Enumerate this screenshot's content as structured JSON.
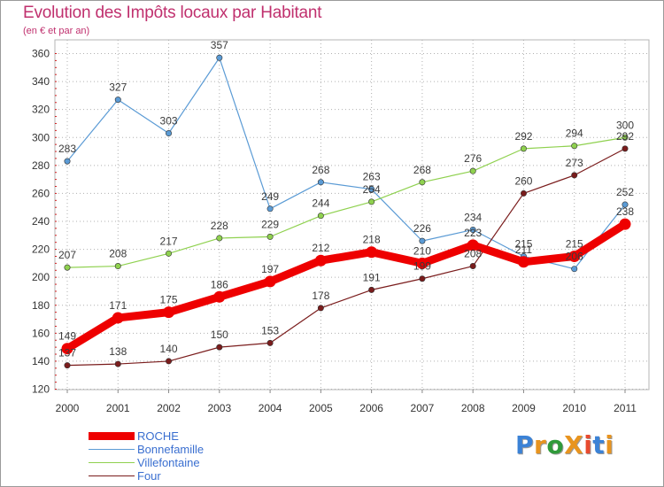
{
  "title": "Evolution des Impôts locaux par Habitant",
  "subtitle": "(en € et par an)",
  "logo": {
    "text": "ProXiti",
    "letters": [
      "P",
      "r",
      "o",
      "X",
      "i",
      "t",
      "i"
    ],
    "colors": [
      "#3b82d6",
      "#e8941f",
      "#2f9a3a",
      "#e8941f",
      "#e84a2f",
      "#3b82d6",
      "#e8941f"
    ]
  },
  "chart_data": {
    "type": "line",
    "title": "Evolution des Impôts locaux par Habitant",
    "subtitle": "(en € et par an)",
    "xlabel": "",
    "ylabel": "",
    "ylim": [
      120,
      360
    ],
    "yticks": [
      120,
      140,
      160,
      180,
      200,
      220,
      240,
      260,
      280,
      300,
      320,
      340,
      360
    ],
    "x": [
      "2000",
      "2001",
      "2002",
      "2003",
      "2004",
      "2005",
      "2006",
      "2007",
      "2008",
      "2009",
      "2010",
      "2011"
    ],
    "grid": "horizontal dotted",
    "legend_position": "bottom-left",
    "series": [
      {
        "name": "ROCHE",
        "color": "#ee0000",
        "style": "thick",
        "values": [
          149,
          171,
          175,
          186,
          197,
          212,
          218,
          210,
          223,
          211,
          215,
          238
        ],
        "labels": [
          "149",
          "171",
          "175",
          "186",
          "197",
          "212",
          "218",
          "210",
          "223",
          "211",
          "215",
          "238"
        ]
      },
      {
        "name": "Bonnefamille",
        "color": "#5b9bd5",
        "style": "thin",
        "values": [
          283,
          327,
          303,
          357,
          249,
          268,
          263,
          226,
          234,
          215,
          206,
          252
        ],
        "labels": [
          "283",
          "327",
          "303",
          "357",
          "249",
          "268",
          "263",
          "226",
          "234",
          "215",
          "206",
          "252"
        ]
      },
      {
        "name": "Villefontaine",
        "color": "#8fd14f",
        "style": "thin",
        "values": [
          207,
          208,
          217,
          228,
          229,
          244,
          254,
          268,
          276,
          292,
          294,
          300
        ],
        "labels": [
          "207",
          "208",
          "217",
          "228",
          "229",
          "244",
          "254",
          "268",
          "276",
          "292",
          "294",
          "300"
        ]
      },
      {
        "name": "Four",
        "color": "#7a1c1c",
        "style": "thin",
        "values": [
          137,
          138,
          140,
          150,
          153,
          178,
          191,
          199,
          208,
          260,
          273,
          292
        ],
        "labels": [
          "137",
          "138",
          "140",
          "150",
          "153",
          "178",
          "191",
          "199",
          "208",
          "260",
          "273",
          "292"
        ]
      }
    ]
  }
}
